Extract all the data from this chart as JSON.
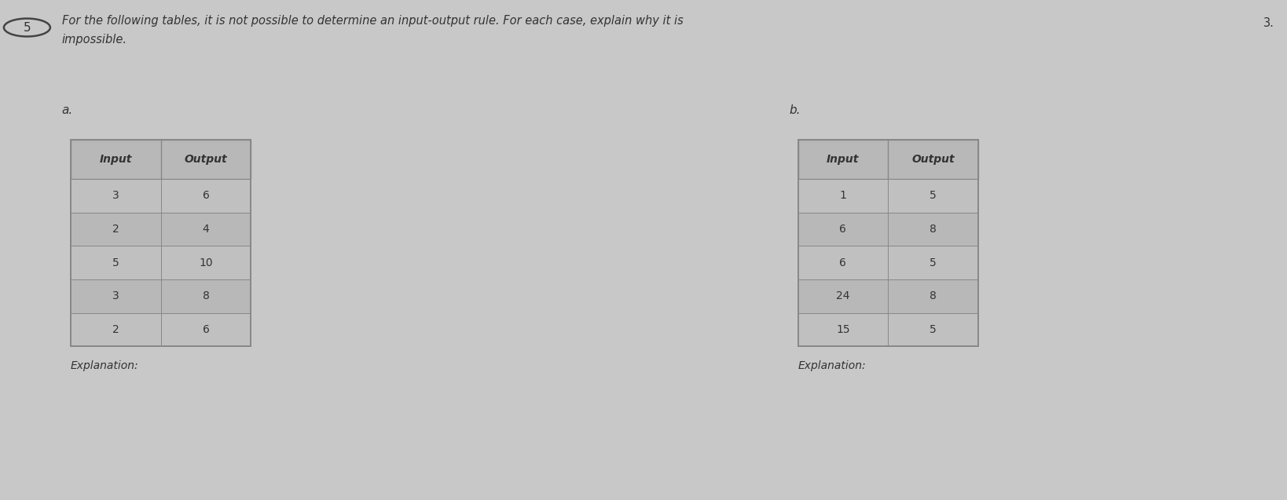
{
  "background_color": "#c8c8c8",
  "question_number": "5",
  "header_line1": "For the following tables, it is not possible to determine an input-output rule. For each case, explain why it is",
  "header_line2": "impossible.",
  "page_number": "3.",
  "label_a": "a.",
  "label_b": "b.",
  "table_a": {
    "headers": [
      "Input",
      "Output"
    ],
    "rows": [
      [
        "3",
        "6"
      ],
      [
        "2",
        "4"
      ],
      [
        "5",
        "10"
      ],
      [
        "3",
        "8"
      ],
      [
        "2",
        "6"
      ]
    ]
  },
  "table_b": {
    "headers": [
      "Input",
      "Output"
    ],
    "rows": [
      [
        "1",
        "5"
      ],
      [
        "6",
        "8"
      ],
      [
        "6",
        "5"
      ],
      [
        "24",
        "8"
      ],
      [
        "15",
        "5"
      ]
    ]
  },
  "explanation_a": "Explanation:",
  "explanation_b": "Explanation:",
  "header_font_size": 10.5,
  "table_header_font_size": 10,
  "table_data_font_size": 10,
  "label_font_size": 11,
  "explanation_font_size": 10,
  "question_num_font_size": 11,
  "text_color": "#333333",
  "table_border_color": "#888888",
  "table_header_bg": "#b8b8b8",
  "table_row_bg_even": "#c0c0c0",
  "table_row_bg_odd": "#b8b8b8"
}
